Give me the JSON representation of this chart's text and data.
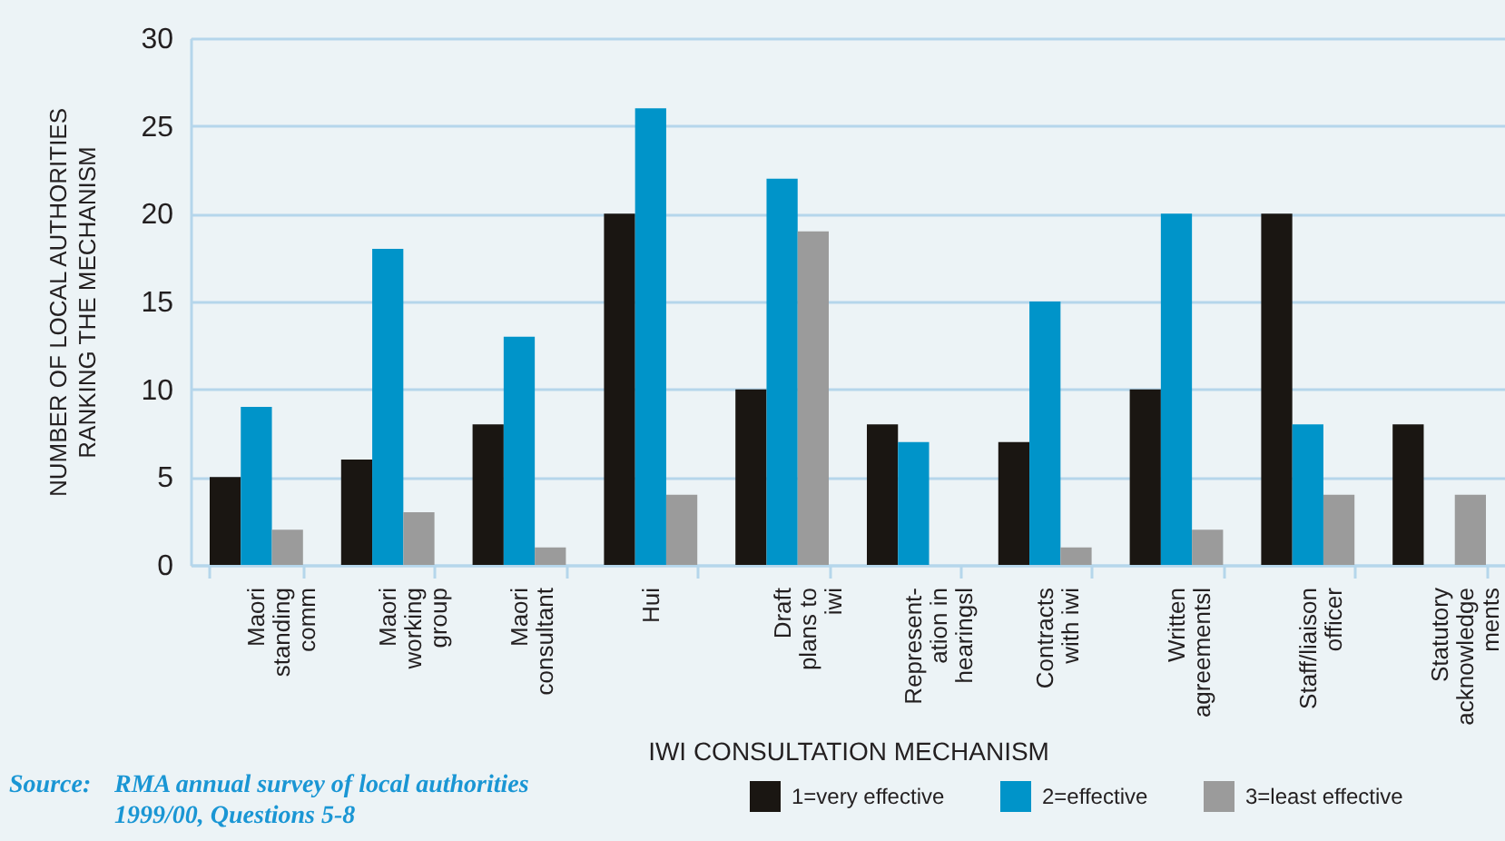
{
  "chart_data": {
    "type": "bar",
    "xlabel": "IWI CONSULTATION MECHANISM",
    "ylabel": "NUMBER OF LOCAL AUTHORITIES RANKING THE MECHANISM",
    "categories": [
      "Maori\nstanding\ncomm",
      "Maori\nworking\ngroup",
      "Maori\nconsultant",
      "Hui",
      "Draft\nplans to\niwi",
      "Represent-\nation in\nhearingsl",
      "Contracts\nwith iwi",
      "Written\nagreementsl",
      "Staff/liaison\nofficer",
      "Statutory\nacknowledge\nments"
    ],
    "series": [
      {
        "name": "1=very effective",
        "color": "#1a1612",
        "values": [
          5,
          6,
          8,
          20,
          10,
          8,
          7,
          10,
          20,
          8
        ]
      },
      {
        "name": "2=effective",
        "color": "#0094c9",
        "values": [
          9,
          18,
          13,
          26,
          22,
          7,
          15,
          20,
          8,
          null
        ]
      },
      {
        "name": "3=least effective",
        "color": "#9b9b9b",
        "values": [
          2,
          3,
          1,
          4,
          19,
          null,
          1,
          2,
          4,
          4
        ]
      }
    ],
    "ylim": [
      0,
      30
    ],
    "yticks": [
      0,
      5,
      10,
      15,
      20,
      25,
      30
    ],
    "grid": "y",
    "legend": "bottom right",
    "annotations": [
      "Source:",
      "RMA annual survey of local authorities",
      "1999/00, Questions 5-8"
    ]
  }
}
